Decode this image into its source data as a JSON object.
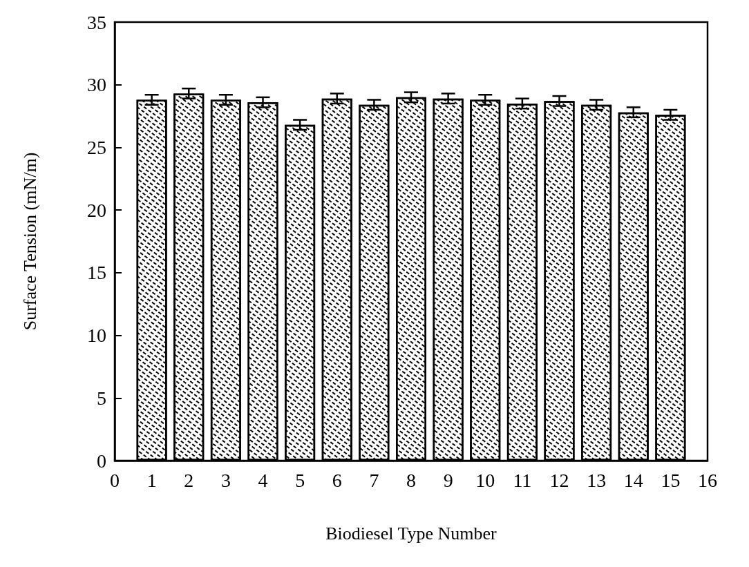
{
  "chart_data": {
    "type": "bar",
    "xlabel": "Biodiesel Type Number",
    "ylabel": "Surface Tension (mN/m)",
    "x": [
      1,
      2,
      3,
      4,
      5,
      6,
      7,
      8,
      9,
      10,
      11,
      12,
      13,
      14,
      15
    ],
    "values": [
      28.8,
      29.3,
      28.8,
      28.6,
      26.8,
      28.9,
      28.4,
      29.0,
      28.9,
      28.8,
      28.5,
      28.7,
      28.4,
      27.8,
      27.6
    ],
    "errors": [
      0.4,
      0.4,
      0.4,
      0.4,
      0.4,
      0.4,
      0.4,
      0.4,
      0.4,
      0.4,
      0.4,
      0.4,
      0.4,
      0.4,
      0.4
    ],
    "color": "#000000",
    "xlim": [
      0,
      16
    ],
    "xticks": [
      0,
      1,
      2,
      3,
      4,
      5,
      6,
      7,
      8,
      9,
      10,
      11,
      12,
      13,
      14,
      15,
      16
    ],
    "ylim": [
      0,
      35
    ],
    "yticks": [
      0,
      5,
      10,
      15,
      20,
      25,
      30,
      35
    ]
  }
}
